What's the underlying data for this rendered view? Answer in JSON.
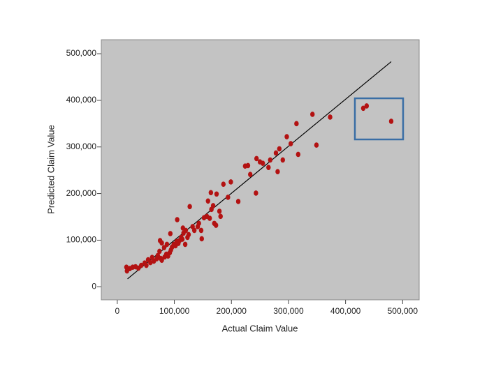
{
  "chart_data": {
    "type": "scatter",
    "x_label": "Actual Claim Value",
    "y_label": "Predicted Claim Value",
    "color": "#b31212",
    "line_color": "#000000",
    "grid": false,
    "xlim": [
      -28000,
      529000
    ],
    "ylim": [
      -28000,
      530000
    ],
    "xticks": [
      0,
      {
        "value": 100000,
        "label": "100,000"
      },
      {
        "value": 200000,
        "label": "200,000"
      },
      {
        "value": 300000,
        "label": "300,000"
      },
      {
        "value": 400000,
        "label": "400,000"
      },
      {
        "value": 500000,
        "label": "500,000"
      }
    ],
    "yticks": [
      0,
      {
        "value": 100000,
        "label": "100,000"
      },
      {
        "value": 200000,
        "label": "200,000"
      },
      {
        "value": 300000,
        "label": "300,000"
      },
      {
        "value": 400000,
        "label": "400,000"
      },
      {
        "value": 500000,
        "label": "500,000"
      }
    ],
    "x": [
      16000,
      17000,
      22000,
      27000,
      32000,
      37000,
      42000,
      48000,
      51000,
      54000,
      58000,
      61000,
      64000,
      69000,
      71000,
      76000,
      78000,
      83000,
      86000,
      89000,
      92000,
      94000,
      96000,
      99000,
      102000,
      104000,
      107000,
      109000,
      112000,
      114000,
      116000,
      120000,
      123000,
      125000,
      127000,
      105000,
      115000,
      119000,
      93000,
      78000,
      82000,
      75000,
      87000,
      74000,
      132000,
      135000,
      141000,
      143000,
      147000,
      148000,
      152000,
      157000,
      159000,
      162000,
      164000,
      165000,
      168000,
      170000,
      173000,
      174000,
      179000,
      181000,
      186000,
      194000,
      199000,
      212000,
      224000,
      229000,
      233000,
      243000,
      244000,
      250000,
      255000,
      265000,
      268000,
      278000,
      281000,
      284000,
      290000,
      297000,
      304000,
      314000,
      317000,
      342000,
      349000,
      373000,
      431000,
      437000,
      480000
    ],
    "y": [
      42000,
      34000,
      39000,
      42000,
      43000,
      40000,
      46000,
      51000,
      46000,
      58000,
      52000,
      63000,
      55000,
      60000,
      67000,
      61000,
      57000,
      64000,
      70000,
      66000,
      73000,
      79000,
      85000,
      91000,
      88000,
      97000,
      93000,
      99000,
      106000,
      102000,
      115000,
      121000,
      106000,
      112000,
      172000,
      144000,
      126000,
      91000,
      114000,
      94000,
      84000,
      99000,
      91000,
      76000,
      129000,
      121000,
      129000,
      136000,
      121000,
      103000,
      148000,
      151000,
      184000,
      147000,
      202000,
      166000,
      174000,
      136000,
      132000,
      199000,
      162000,
      151000,
      220000,
      192000,
      225000,
      183000,
      259000,
      260000,
      241000,
      201000,
      275000,
      268000,
      265000,
      256000,
      272000,
      287000,
      247000,
      296000,
      272000,
      322000,
      307000,
      350000,
      284000,
      370000,
      304000,
      364000,
      383000,
      388000,
      355000
    ],
    "fit_line": {
      "x": [
        18000,
        480000
      ],
      "y": [
        17000,
        483000
      ]
    }
  }
}
